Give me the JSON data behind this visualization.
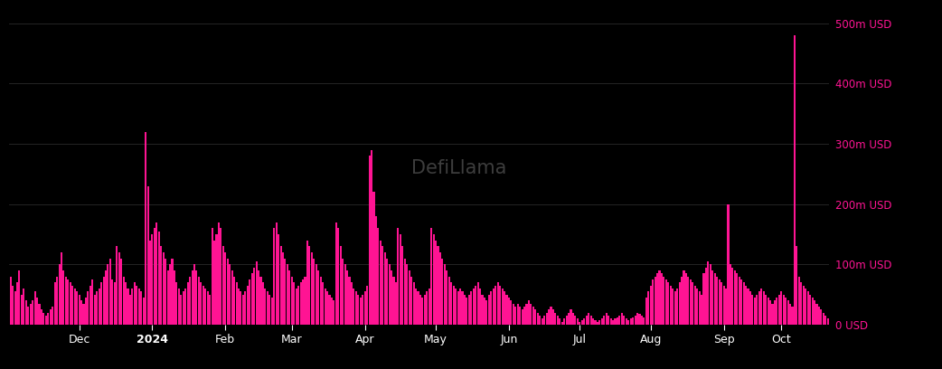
{
  "background_color": "#000000",
  "bar_color": "#FF1493",
  "grid_color": "#2a2a2a",
  "ytick_labels": [
    "0 USD",
    "100m USD",
    "200m USD",
    "300m USD",
    "400m USD",
    "500m USD"
  ],
  "yticks": [
    0,
    100,
    200,
    300,
    400,
    500
  ],
  "ylim": [
    0,
    520
  ],
  "x_month_labels": [
    "Dec",
    "2024",
    "Feb",
    "Mar",
    "Apr",
    "May",
    "Jun",
    "Jul",
    "Aug",
    "Sep",
    "Oct"
  ],
  "watermark_text": "DefiLlama",
  "bar_width": 0.85,
  "values_millions": [
    80,
    65,
    55,
    70,
    90,
    50,
    60,
    40,
    30,
    35,
    40,
    55,
    45,
    35,
    25,
    20,
    15,
    20,
    25,
    30,
    70,
    80,
    100,
    120,
    90,
    80,
    75,
    70,
    65,
    60,
    55,
    50,
    40,
    35,
    45,
    55,
    65,
    75,
    50,
    55,
    60,
    70,
    80,
    90,
    100,
    110,
    75,
    70,
    130,
    120,
    110,
    80,
    70,
    60,
    50,
    60,
    70,
    65,
    60,
    55,
    45,
    320,
    230,
    140,
    150,
    160,
    170,
    155,
    130,
    120,
    110,
    90,
    100,
    110,
    90,
    70,
    60,
    50,
    55,
    60,
    70,
    80,
    90,
    100,
    90,
    80,
    70,
    65,
    60,
    55,
    50,
    160,
    140,
    150,
    170,
    160,
    130,
    120,
    110,
    100,
    90,
    80,
    70,
    60,
    55,
    50,
    55,
    65,
    75,
    85,
    95,
    105,
    90,
    80,
    70,
    60,
    55,
    50,
    45,
    160,
    170,
    150,
    130,
    120,
    110,
    100,
    90,
    80,
    70,
    60,
    65,
    70,
    75,
    80,
    140,
    130,
    120,
    110,
    100,
    90,
    80,
    70,
    60,
    55,
    50,
    45,
    40,
    170,
    160,
    130,
    110,
    100,
    90,
    80,
    70,
    60,
    55,
    50,
    45,
    50,
    55,
    65,
    280,
    290,
    220,
    180,
    160,
    140,
    130,
    120,
    110,
    100,
    90,
    80,
    70,
    160,
    150,
    130,
    110,
    100,
    90,
    80,
    70,
    60,
    55,
    50,
    45,
    50,
    55,
    60,
    160,
    150,
    140,
    130,
    120,
    110,
    100,
    90,
    80,
    70,
    65,
    60,
    55,
    60,
    55,
    50,
    45,
    50,
    55,
    60,
    65,
    70,
    60,
    50,
    45,
    40,
    50,
    55,
    60,
    65,
    70,
    65,
    60,
    55,
    50,
    45,
    40,
    35,
    30,
    35,
    30,
    25,
    30,
    35,
    40,
    35,
    30,
    25,
    20,
    15,
    10,
    15,
    20,
    25,
    30,
    25,
    20,
    15,
    10,
    5,
    10,
    15,
    20,
    25,
    20,
    15,
    10,
    5,
    8,
    10,
    15,
    20,
    15,
    10,
    8,
    5,
    8,
    10,
    15,
    20,
    15,
    10,
    8,
    10,
    12,
    15,
    20,
    15,
    10,
    8,
    10,
    12,
    15,
    20,
    18,
    15,
    12,
    45,
    55,
    65,
    75,
    80,
    85,
    90,
    85,
    80,
    75,
    70,
    65,
    60,
    55,
    60,
    70,
    80,
    90,
    85,
    80,
    75,
    70,
    65,
    60,
    55,
    50,
    85,
    95,
    105,
    100,
    90,
    85,
    80,
    75,
    70,
    65,
    60,
    200,
    100,
    95,
    90,
    85,
    80,
    75,
    70,
    65,
    60,
    55,
    50,
    45,
    50,
    55,
    60,
    55,
    50,
    45,
    40,
    35,
    40,
    45,
    50,
    55,
    50,
    45,
    40,
    35,
    30,
    480,
    130,
    80,
    70,
    65,
    60,
    55,
    50,
    45,
    40,
    35,
    30,
    25,
    20,
    15,
    10
  ]
}
